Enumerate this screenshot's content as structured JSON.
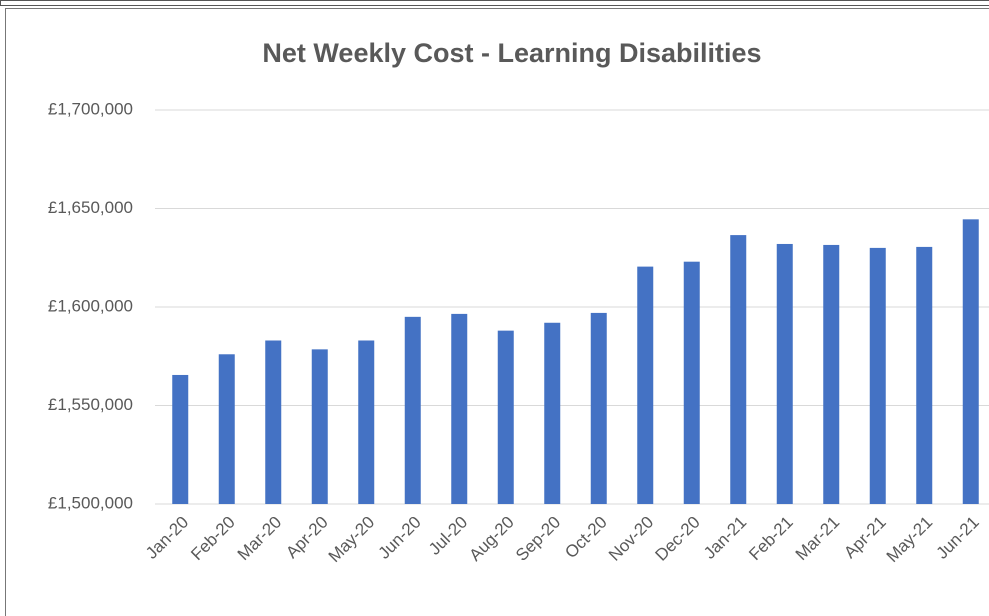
{
  "chart_data": {
    "type": "bar",
    "title": "Net Weekly Cost - Learning Disabilities",
    "categories": [
      "Jan-20",
      "Feb-20",
      "Mar-20",
      "Apr-20",
      "May-20",
      "Jun-20",
      "Jul-20",
      "Aug-20",
      "Sep-20",
      "Oct-20",
      "Nov-20",
      "Dec-20",
      "Jan-21",
      "Feb-21",
      "Mar-21",
      "Apr-21",
      "May-21",
      "Jun-21"
    ],
    "values": [
      1565500,
      1576000,
      1583000,
      1578500,
      1583000,
      1595000,
      1596500,
      1588000,
      1592000,
      1597000,
      1620500,
      1623000,
      1636500,
      1632000,
      1631500,
      1630000,
      1630500,
      1644500
    ],
    "color": "#4472c4",
    "ylim": [
      1500000,
      1700000
    ],
    "yticks": [
      {
        "value": 1500000,
        "label": "£1,500,000"
      },
      {
        "value": 1550000,
        "label": "£1,550,000"
      },
      {
        "value": 1600000,
        "label": "£1,600,000"
      },
      {
        "value": 1650000,
        "label": "£1,650,000"
      },
      {
        "value": 1700000,
        "label": "£1,700,000"
      }
    ],
    "grid": true
  }
}
